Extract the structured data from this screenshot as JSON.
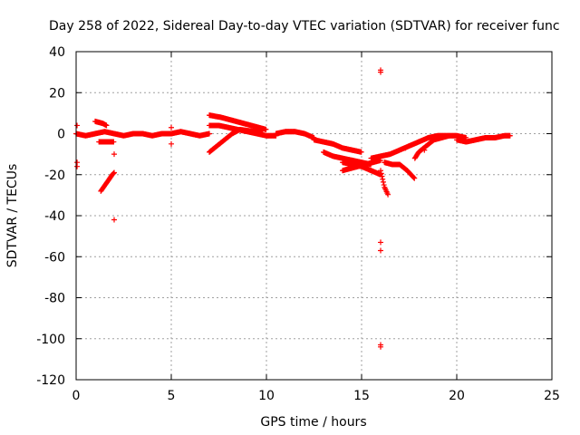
{
  "chart_data": {
    "type": "scatter",
    "title": "Day 258 of 2022, Sidereal Day-to-day VTEC variation (SDTVAR) for receiver func",
    "xlabel": "GPS time / hours",
    "ylabel": "SDTVAR / TECUs",
    "xlim": [
      0,
      25
    ],
    "ylim": [
      -120,
      40
    ],
    "xticks": [
      0,
      5,
      10,
      15,
      20,
      25
    ],
    "yticks": [
      -120,
      -100,
      -80,
      -60,
      -40,
      -20,
      0,
      20,
      40
    ],
    "grid": true,
    "marker": "plus",
    "color": "#ff0000",
    "segments": [
      {
        "x": [
          0.0,
          0.5,
          1.0,
          1.5,
          2.0,
          2.5,
          3.0,
          3.5,
          4.0,
          4.5,
          5.0,
          5.5,
          6.0,
          6.5,
          7.0
        ],
        "y": [
          0,
          -1,
          0,
          1,
          0,
          -1,
          0,
          0,
          -1,
          0,
          0,
          1,
          0,
          -1,
          0
        ]
      },
      {
        "x": [
          1.0,
          1.2,
          1.4,
          1.6
        ],
        "y": [
          6,
          5.5,
          5,
          4
        ]
      },
      {
        "x": [
          1.2,
          1.4,
          1.6,
          1.8,
          2.0
        ],
        "y": [
          -4,
          -4,
          -4,
          -4,
          -4
        ]
      },
      {
        "x": [
          1.3,
          1.45,
          1.6,
          1.75,
          1.9,
          2.0
        ],
        "y": [
          -28,
          -26,
          -24,
          -22,
          -20,
          -19
        ]
      },
      {
        "x": [
          7.0,
          7.3,
          7.6,
          8.0,
          8.4,
          8.8,
          9.2,
          9.6,
          10.0
        ],
        "y": [
          9,
          8.5,
          8,
          7,
          6,
          5,
          4,
          3,
          2
        ]
      },
      {
        "x": [
          7.0,
          7.4,
          7.8,
          8.2,
          8.6,
          9.0,
          9.4,
          9.8
        ],
        "y": [
          -9,
          -6,
          -3,
          0,
          2,
          1.5,
          1,
          0
        ]
      },
      {
        "x": [
          7.0,
          7.5,
          8.0,
          8.5,
          9.0,
          9.5,
          10.0,
          10.5
        ],
        "y": [
          4,
          4,
          3,
          2,
          1,
          0,
          -1,
          -1
        ]
      },
      {
        "x": [
          10.5,
          11.0,
          11.5,
          12.0,
          12.5
        ],
        "y": [
          0,
          1,
          1,
          0,
          -2
        ]
      },
      {
        "x": [
          12.5,
          13.0,
          13.5,
          14.0,
          14.5,
          15.0
        ],
        "y": [
          -3,
          -4,
          -5,
          -7,
          -8,
          -9
        ]
      },
      {
        "x": [
          13.0,
          13.5,
          14.0,
          14.5,
          15.0,
          15.5
        ],
        "y": [
          -9,
          -11,
          -12,
          -13,
          -14,
          -15
        ]
      },
      {
        "x": [
          14.0,
          14.5,
          15.0,
          15.5,
          16.0
        ],
        "y": [
          -14,
          -15,
          -16,
          -18,
          -20
        ]
      },
      {
        "x": [
          14.0,
          14.4,
          14.8,
          15.2,
          15.6,
          16.0
        ],
        "y": [
          -18,
          -17,
          -16,
          -15,
          -14,
          -13
        ]
      },
      {
        "x": [
          15.5,
          16.0,
          16.5,
          17.0,
          17.5,
          18.0
        ],
        "y": [
          -12,
          -11,
          -10,
          -8,
          -6,
          -4
        ]
      },
      {
        "x": [
          16.0,
          16.1,
          16.2,
          16.3,
          16.4
        ],
        "y": [
          -18,
          -22,
          -26,
          -28,
          -30
        ]
      },
      {
        "x": [
          16.2,
          16.6,
          17.0,
          17.4,
          17.8
        ],
        "y": [
          -14,
          -15,
          -15,
          -18,
          -22
        ]
      },
      {
        "x": [
          17.8,
          18.0,
          18.4,
          18.8,
          19.2,
          19.6
        ],
        "y": [
          -12,
          -9,
          -6,
          -3,
          -2,
          -1
        ]
      },
      {
        "x": [
          18.0,
          18.5,
          19.0,
          19.5,
          20.0,
          20.5
        ],
        "y": [
          -4,
          -2,
          -1,
          -1,
          -1,
          -2
        ]
      },
      {
        "x": [
          20.0,
          20.5,
          21.0,
          21.5,
          22.0,
          22.5,
          22.8
        ],
        "y": [
          -3,
          -4,
          -3,
          -2,
          -2,
          -1,
          -1
        ]
      }
    ],
    "outliers": [
      {
        "x": 0.05,
        "y": 4
      },
      {
        "x": 0.05,
        "y": -14
      },
      {
        "x": 0.05,
        "y": -16
      },
      {
        "x": 2.0,
        "y": -42
      },
      {
        "x": 2.0,
        "y": -10
      },
      {
        "x": 5.0,
        "y": 3
      },
      {
        "x": 5.0,
        "y": -5
      },
      {
        "x": 16.0,
        "y": 31
      },
      {
        "x": 16.0,
        "y": 30
      },
      {
        "x": 16.0,
        "y": -53
      },
      {
        "x": 16.0,
        "y": -57
      },
      {
        "x": 16.0,
        "y": -103
      },
      {
        "x": 16.0,
        "y": -104
      },
      {
        "x": 18.3,
        "y": -8
      },
      {
        "x": 17.3,
        "y": -7
      }
    ]
  }
}
